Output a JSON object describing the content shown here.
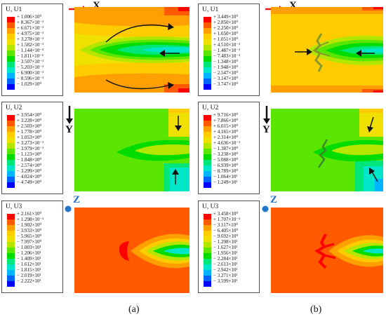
{
  "palette": [
    "#ff0000",
    "#ff5a00",
    "#ffa000",
    "#ffcc00",
    "#f0e000",
    "#b4e600",
    "#5ae600",
    "#00dc00",
    "#00e678",
    "#00e6c8",
    "#00b4ff",
    "#0064ff",
    "#0000ff"
  ],
  "panels": [
    {
      "title": "U, U1",
      "labels": [
        "+ 1.006×10⁰",
        "+ 8.367×10⁻¹",
        "+ 6.671×10⁻¹",
        "+ 4.975×10⁻¹",
        "+ 3.278×10⁻¹",
        "+ 1.582×10⁻¹",
        "− 1.144×10⁻²",
        "− 1.811×10⁻¹",
        "− 3.507×10⁻¹",
        "− 5.203×10⁻¹",
        "− 6.900×10⁻¹",
        "− 8.596×10⁻¹",
        "− 1.029×10⁰"
      ]
    },
    {
      "title": "U, U2",
      "labels": [
        "+ 3.954×10⁰",
        "+ 3.228×10⁰",
        "+ 2.503×10⁰",
        "+ 1.778×10⁰",
        "+ 1.053×10⁰",
        "+ 3.273×10⁻¹",
        "− 3.979×10⁻¹",
        "− 1.123×10⁰",
        "− 1.848×10⁰",
        "− 2.574×10⁰",
        "− 3.299×10⁰",
        "− 4.024×10⁰",
        "− 4.749×10⁰"
      ]
    },
    {
      "title": "U, U3",
      "labels": [
        "+ 2.161×10⁰",
        "+ 1.298×10⁻¹",
        "− 1.902×10⁰",
        "− 3.933×10⁰",
        "− 5.965×10⁰",
        "− 7.997×10⁰",
        "− 1.003×10¹",
        "− 1.206×10¹",
        "− 1.409×10¹",
        "− 1.612×10¹",
        "− 1.815×10¹",
        "− 2.019×10¹",
        "− 2.222×10¹"
      ]
    },
    {
      "title": "U, U1",
      "labels": [
        "+ 3.449×10⁰",
        "+ 2.850×10⁰",
        "+ 2.250×10⁰",
        "+ 1.650×10⁰",
        "+ 1.051×10⁰",
        "+ 4.510×10⁻¹",
        "− 1.487×10⁻¹",
        "− 7.483×10⁻¹",
        "− 1.348×10⁰",
        "− 1.948×10⁰",
        "− 2.547×10⁰",
        "− 3.147×10⁰",
        "− 3.747×10⁰"
      ]
    },
    {
      "title": "U, U2",
      "labels": [
        "+ 9.716×10⁰",
        "+ 7.866×10⁰",
        "+ 6.015×10⁰",
        "+ 4.165×10⁰",
        "+ 2.314×10⁰",
        "+ 4.636×10⁻¹",
        "− 1.387×10⁰",
        "− 3.238×10⁰",
        "− 5.088×10⁰",
        "− 6.939×10⁰",
        "− 8.789×10⁰",
        "− 1.064×10¹",
        "− 1.249×10¹"
      ]
    },
    {
      "title": "U, U3",
      "labels": [
        "+ 3.458×10⁰",
        "+ 1.707×10⁻¹",
        "− 3.117×10⁰",
        "− 6.405×10⁰",
        "− 9.692×10⁰",
        "− 1.298×10¹",
        "− 1.627×10¹",
        "− 1.956×10¹",
        "− 2.284×10¹",
        "− 2.613×10¹",
        "− 2.942×10¹",
        "− 3.271×10¹",
        "− 3.599×10¹"
      ]
    }
  ],
  "axes": {
    "x": "X",
    "y": "Y",
    "z": "Z"
  },
  "captions": {
    "a": "(a)",
    "b": "(b)"
  }
}
